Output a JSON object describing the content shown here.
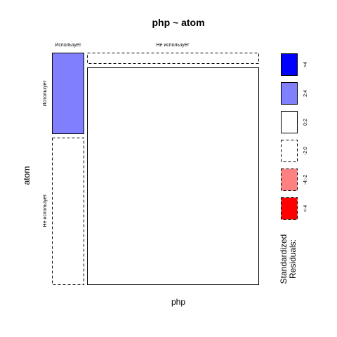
{
  "chart_data": {
    "type": "mosaic",
    "title": "php ~ atom",
    "xlabel": "php",
    "ylabel": "atom",
    "x_levels": [
      "Использует",
      "Не использует"
    ],
    "y_levels": [
      "Использует",
      "Не использует"
    ],
    "cells": [
      {
        "php": "Использует",
        "atom": "Использует",
        "residual_sign": "positive",
        "residual_class": "2:4",
        "fill": "#8080ff",
        "border": "solid"
      },
      {
        "php": "Использует",
        "atom": "Не использует",
        "residual_sign": "negative",
        "residual_class": "-2:0",
        "fill": "#ffffff",
        "border": "dashed"
      },
      {
        "php": "Не использует",
        "atom": "Использует",
        "residual_sign": "negative",
        "residual_class": "-2:0",
        "fill": "#ffffff",
        "border": "dashed"
      },
      {
        "php": "Не использует",
        "atom": "Не использует",
        "residual_sign": "positive",
        "residual_class": "0:2",
        "fill": "#ffffff",
        "border": "solid"
      }
    ],
    "legend": {
      "title_lines": [
        "Standardized",
        "Residuals:"
      ],
      "placement": "right",
      "entries": [
        {
          "label": ">4",
          "fill": "#0000ff",
          "border": "solid"
        },
        {
          "label": "2:4",
          "fill": "#8080ff",
          "border": "solid"
        },
        {
          "label": "0:2",
          "fill": "#ffffff",
          "border": "solid"
        },
        {
          "label": "-2:0",
          "fill": "#ffffff",
          "border": "dashed"
        },
        {
          "label": "-4:-2",
          "fill": "#ff8080",
          "border": "dashed"
        },
        {
          "label": "<-4",
          "fill": "#ff0000",
          "border": "dashed"
        }
      ]
    }
  }
}
